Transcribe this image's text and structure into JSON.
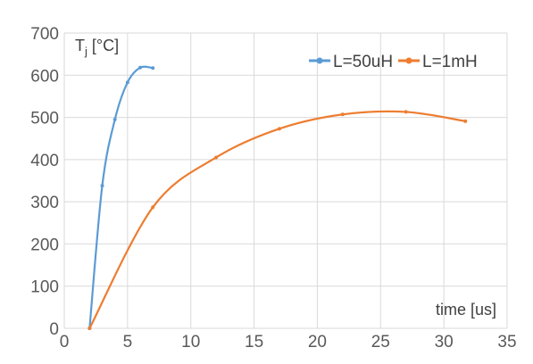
{
  "chart_data": {
    "type": "line",
    "xlabel": "time [us]",
    "ylabel": {
      "main": "T",
      "sub": "j",
      "unit": " [°C]"
    },
    "xlim": [
      0,
      35
    ],
    "ylim": [
      0,
      700
    ],
    "xticks": [
      0,
      5,
      10,
      15,
      20,
      25,
      30,
      35
    ],
    "yticks": [
      0,
      100,
      200,
      300,
      400,
      500,
      600,
      700
    ],
    "grid": true,
    "legend_position": "top-right",
    "series": [
      {
        "name": "L=50uH",
        "color": "#5b9bd5",
        "x": [
          2.0,
          3.0,
          4.0,
          5.0,
          6.0,
          7.0
        ],
        "y": [
          0,
          338,
          495,
          583,
          618,
          617
        ]
      },
      {
        "name": "L=1mH",
        "color": "#ed7d31",
        "x": [
          2.0,
          7.0,
          12.0,
          17.0,
          22.0,
          27.0,
          31.7
        ],
        "y": [
          0,
          287,
          405,
          473,
          507,
          513,
          491
        ]
      }
    ]
  }
}
